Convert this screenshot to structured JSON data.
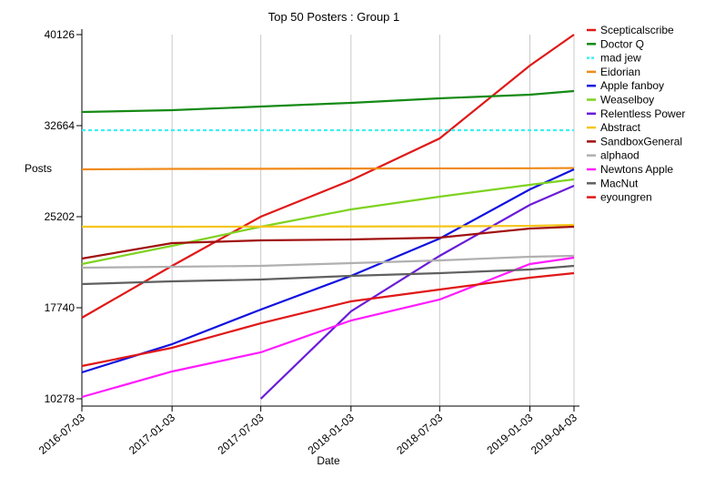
{
  "chart_data": {
    "type": "line",
    "title": "Top 50 Posters : Group 1",
    "x_label": "Date",
    "y_label": "Posts",
    "x": [
      "2016-07-03",
      "2017-01-03",
      "2017-07-03",
      "2018-01-03",
      "2018-07-03",
      "2019-01-03",
      "2019-04-03"
    ],
    "xlim": [
      "2016-07-03",
      "2019-04-03"
    ],
    "xticks": [
      "2016-07-03",
      "2017-01-03",
      "2017-07-03",
      "2018-01-03",
      "2018-07-03",
      "2019-01-03",
      "2019-04-03"
    ],
    "ylim": [
      9681,
      40126
    ],
    "yticks": [
      10278,
      17740,
      25202,
      32664,
      40126
    ],
    "grid": "x",
    "legend": "right",
    "series": [
      {
        "name": "Scepticalscribe",
        "color": "#e01818",
        "values": [
          16919,
          21173,
          25202,
          28187,
          31619,
          37589,
          40126
        ]
      },
      {
        "name": "Doctor Q",
        "color": "#158a15",
        "values": [
          33783,
          33933,
          34231,
          34529,
          34903,
          35201,
          35500
        ]
      },
      {
        "name": "mad jew",
        "color": "#3ef0f0",
        "dashed": true,
        "values": [
          32291,
          32291,
          32291,
          32291,
          32291,
          32291,
          32291
        ]
      },
      {
        "name": "Eidorian",
        "color": "#f08a18",
        "values": [
          29082,
          29120,
          29130,
          29150,
          29160,
          29170,
          29190
        ]
      },
      {
        "name": "Apple fanboy",
        "color": "#1010e0",
        "values": [
          12442,
          14755,
          17591,
          20352,
          23411,
          27441,
          29082
        ]
      },
      {
        "name": "Weaselboy",
        "color": "#7ed321",
        "values": [
          21322,
          22814,
          24381,
          25799,
          26844,
          27814,
          28261
        ]
      },
      {
        "name": "Relentless Power",
        "color": "#6a1bd8",
        "values": [
          null,
          null,
          10278,
          17442,
          21993,
          26172,
          27739
        ]
      },
      {
        "name": "Abstract",
        "color": "#f5c518",
        "values": [
          24381,
          24381,
          24390,
          24400,
          24410,
          24450,
          24530
        ]
      },
      {
        "name": "SandboxGeneral",
        "color": "#a01010",
        "values": [
          21769,
          23038,
          23262,
          23336,
          23486,
          24232,
          24381
        ]
      },
      {
        "name": "alphaod",
        "color": "#b0b0b0",
        "values": [
          21023,
          21098,
          21172,
          21396,
          21620,
          21919,
          21993
        ]
      },
      {
        "name": "Newtons Apple",
        "color": "#ff1aff",
        "values": [
          10427,
          12517,
          14084,
          16695,
          18412,
          21322,
          21844
        ]
      },
      {
        "name": "MacNut",
        "color": "#606060",
        "values": [
          19680,
          19904,
          20053,
          20352,
          20576,
          20874,
          21173
        ]
      },
      {
        "name": "eyoungren",
        "color": "#e01818",
        "values": [
          12964,
          14457,
          16471,
          18262,
          19232,
          20202,
          20576
        ]
      }
    ]
  }
}
